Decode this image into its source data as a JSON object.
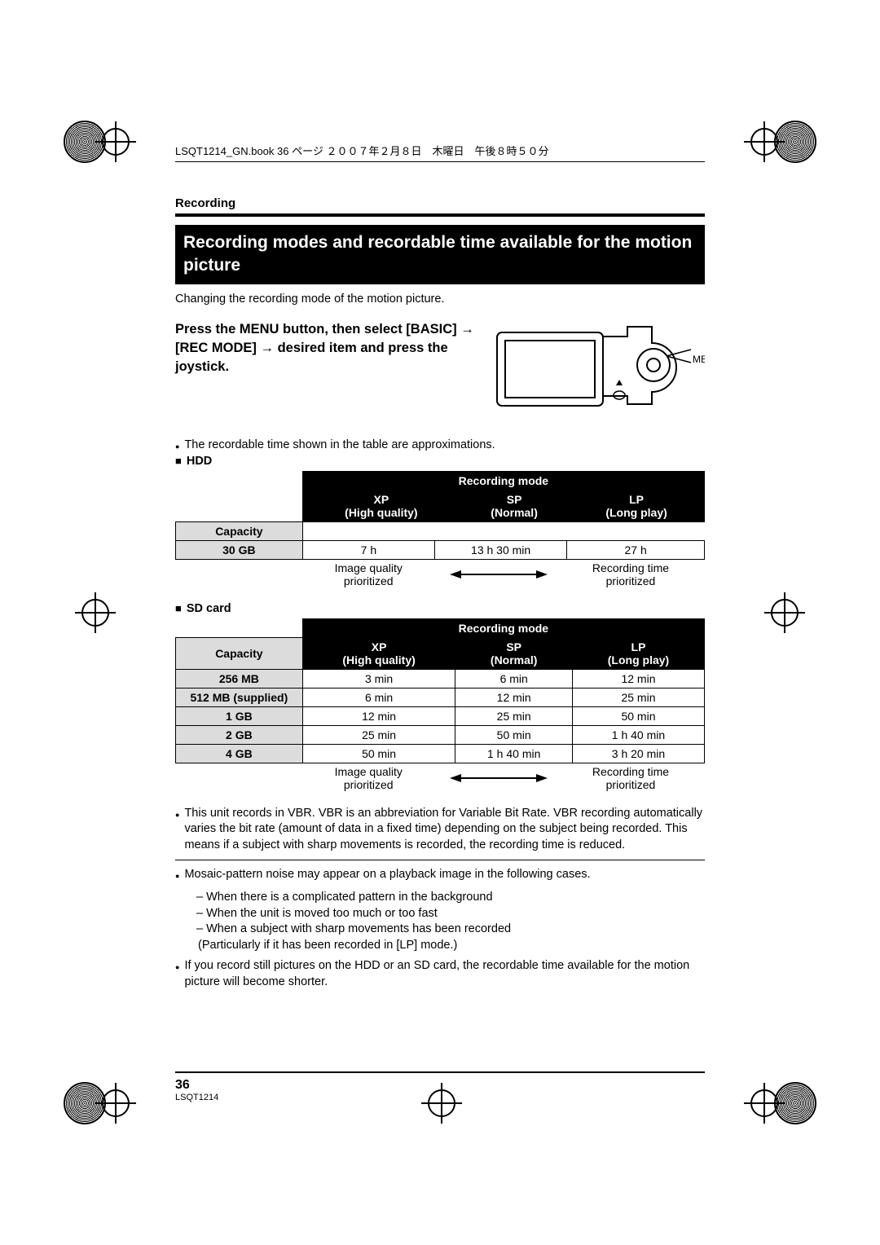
{
  "header_line": "LSQT1214_GN.book  36 ページ  ２００７年２月８日　木曜日　午後８時５０分",
  "section_label": "Recording",
  "title": "Recording modes and recordable time available for the motion picture",
  "intro": "Changing the recording mode of the motion picture.",
  "instruction": "Press the MENU button, then select [BASIC] → [REC MODE] → desired item and press the joystick.",
  "menu_label": "MENU",
  "approx_note": "The recordable time shown in the table are approximations.",
  "hdd_label": "HDD",
  "sd_label": "SD card",
  "table_header": {
    "mode": "Recording mode",
    "capacity": "Capacity",
    "xp_line1": "XP",
    "xp_line2": "(High quality)",
    "sp_line1": "SP",
    "sp_line2": "(Normal)",
    "lp_line1": "LP",
    "lp_line2": "(Long play)"
  },
  "hdd_rows": [
    {
      "capacity": "30 GB",
      "xp": "7 h",
      "sp": "13 h 30 min",
      "lp": "27 h"
    }
  ],
  "sd_rows": [
    {
      "capacity": "256 MB",
      "xp": "3 min",
      "sp": "6 min",
      "lp": "12 min"
    },
    {
      "capacity": "512 MB (supplied)",
      "xp": "6 min",
      "sp": "12 min",
      "lp": "25 min"
    },
    {
      "capacity": "1 GB",
      "xp": "12 min",
      "sp": "25 min",
      "lp": "50 min"
    },
    {
      "capacity": "2 GB",
      "xp": "25 min",
      "sp": "50 min",
      "lp": "1 h 40 min"
    },
    {
      "capacity": "4 GB",
      "xp": "50 min",
      "sp": "1 h 40 min",
      "lp": "3 h 20 min"
    }
  ],
  "priority_left_l1": "Image quality",
  "priority_left_l2": "prioritized",
  "priority_right_l1": "Recording time",
  "priority_right_l2": "prioritized",
  "vbr_note": "This unit records in VBR. VBR is an abbreviation for Variable Bit Rate. VBR recording automatically varies the bit rate (amount of data in a fixed time) depending on the subject being recorded. This means if a subject with sharp movements is recorded, the recording time is reduced.",
  "mosaic_intro": "Mosaic-pattern noise may appear on a playback image in the following cases.",
  "mosaic_cases": [
    "When there is a complicated pattern in the background",
    "When the unit is moved too much or too fast",
    "When a subject with sharp movements has been recorded"
  ],
  "mosaic_paren": "(Particularly if it has been recorded in [LP] mode.)",
  "still_note": "If you record still pictures on the HDD or an SD card, the recordable time available for the motion picture will become shorter.",
  "page_number": "36",
  "footer_code": "LSQT1214"
}
